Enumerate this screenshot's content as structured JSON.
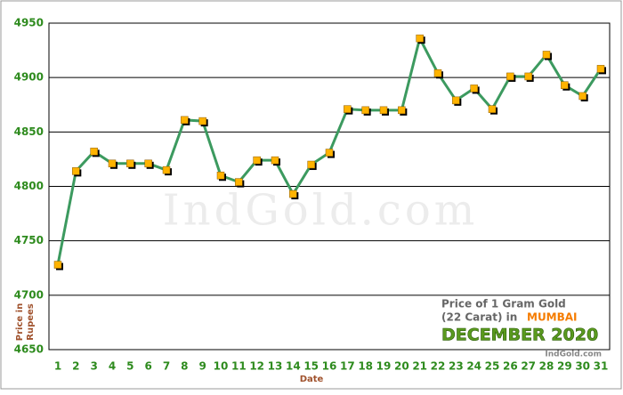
{
  "chart_data": {
    "type": "line",
    "watermark": "IndGold.com",
    "note_line1": "Price of 1 Gram Gold",
    "note_line2": "(22 Carat) in",
    "city": "MUMBAI",
    "period": "DECEMBER 2020",
    "source": "IndGold.com",
    "x_label": "Date",
    "y_label_line1": "Price in",
    "y_label_line2": "Rupees",
    "categories": [
      "1",
      "2",
      "3",
      "4",
      "5",
      "6",
      "7",
      "8",
      "9",
      "10",
      "11",
      "12",
      "13",
      "14",
      "15",
      "16",
      "17",
      "18",
      "19",
      "20",
      "21",
      "22",
      "23",
      "24",
      "25",
      "26",
      "27",
      "28",
      "29",
      "30",
      "31"
    ],
    "series": [
      {
        "color": "#3c9a5f",
        "marker_color": "#ffb300",
        "values": [
          4728,
          4814,
          4832,
          4821,
          4821,
          4821,
          4815,
          4861,
          4860,
          4810,
          4804,
          4824,
          4824,
          4793,
          4820,
          4831,
          4871,
          4870,
          4870,
          4870,
          4936,
          4904,
          4879,
          4890,
          4871,
          4901,
          4901,
          4921,
          4893,
          4883,
          4908
        ]
      }
    ],
    "ylim": [
      4650,
      4950
    ],
    "yticks": [
      4650,
      4700,
      4750,
      4800,
      4850,
      4900,
      4950
    ],
    "grid": true
  }
}
